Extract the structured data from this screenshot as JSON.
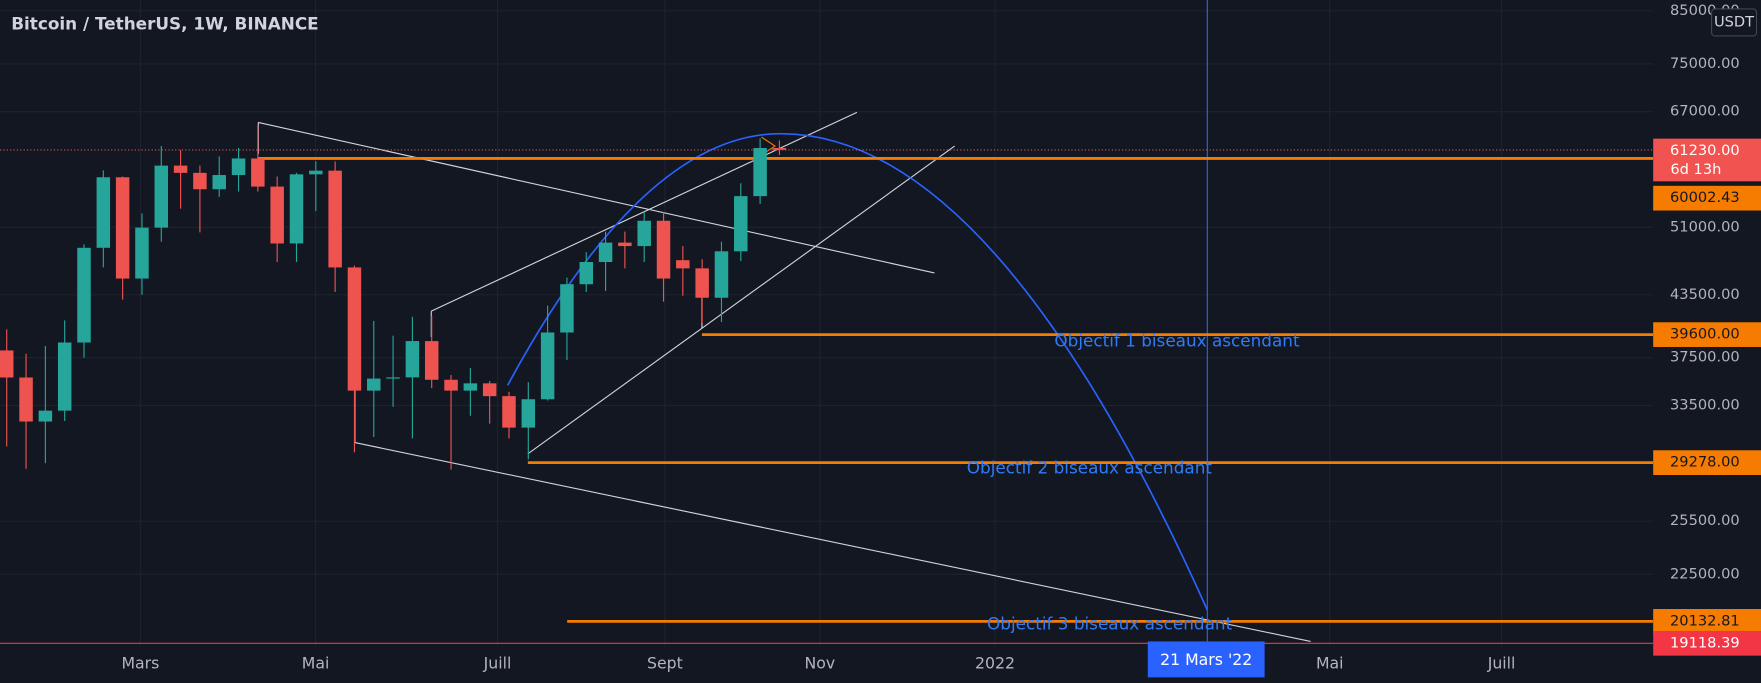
{
  "chart_data": {
    "type": "candlestick",
    "title": "Bitcoin / TetherUS, 1W, BINANCE",
    "currency": "USDT",
    "open": [
      38150,
      35790,
      32260,
      33100,
      38870,
      48600,
      57400,
      45200,
      50970,
      59000,
      58000,
      55800,
      57700,
      60000,
      56150,
      49100,
      57800,
      58300,
      46400,
      34700,
      35700,
      35800,
      39000,
      35600,
      34700,
      35300,
      34250,
      31800,
      34000,
      39800,
      44600,
      47000,
      49200,
      48800,
      51800,
      47200,
      46300,
      43200,
      48200,
      54900,
      61500
    ],
    "high": [
      40100,
      37850,
      38550,
      40950,
      49000,
      58350,
      57500,
      52700,
      61800,
      61200,
      59000,
      60300,
      61500,
      64850,
      57500,
      58000,
      59600,
      59600,
      46600,
      40900,
      39500,
      41300,
      41400,
      36000,
      36600,
      35500,
      34600,
      35400,
      42400,
      45300,
      48100,
      50500,
      50500,
      52900,
      52900,
      48800,
      47300,
      49300,
      56600,
      62900,
      62600
    ],
    "low": [
      30420,
      28850,
      29240,
      32300,
      37500,
      46400,
      43000,
      43500,
      49300,
      53300,
      50400,
      54800,
      55500,
      55500,
      47000,
      47000,
      53000,
      43800,
      30000,
      31100,
      33400,
      31000,
      34900,
      28800,
      32700,
      32100,
      31000,
      29500,
      33900,
      37300,
      43800,
      43900,
      46300,
      47000,
      42800,
      43400,
      40700,
      40800,
      47100,
      53900,
      60500
    ],
    "close": [
      35790,
      32260,
      33100,
      38870,
      48600,
      57400,
      45200,
      50970,
      59000,
      58000,
      55800,
      57700,
      60000,
      56150,
      49100,
      57800,
      58300,
      46400,
      34700,
      35700,
      35800,
      39000,
      35600,
      34700,
      35300,
      34250,
      31800,
      34000,
      39800,
      44600,
      47000,
      49200,
      48800,
      51800,
      45200,
      46300,
      43200,
      48200,
      54900,
      61500,
      61230
    ],
    "up_color": "#26a69a",
    "down_color": "#ef5350",
    "log_scale": true,
    "grid": true,
    "ylim": [
      19000,
      87200
    ],
    "yticks": [
      {
        "value": 85000,
        "label": "85000.00"
      },
      {
        "value": 75000,
        "label": "75000.00"
      },
      {
        "value": 67000,
        "label": "67000.00"
      },
      {
        "value": 51000,
        "label": "51000.00"
      },
      {
        "value": 43500,
        "label": "43500.00"
      },
      {
        "value": 37500,
        "label": "37500.00"
      },
      {
        "value": 33500,
        "label": "33500.00"
      },
      {
        "value": 25500,
        "label": "25500.00"
      },
      {
        "value": 22500,
        "label": "22500.00"
      }
    ],
    "xticks": [
      "Mars",
      "Mai",
      "Juill",
      "Sept",
      "Nov",
      "2022",
      "Mai",
      "Juill"
    ],
    "crosshair_label": "21 Mars '22",
    "last_price": {
      "value": 61230,
      "label": "61230.00",
      "countdown": "6d 13h",
      "color": "#f05350"
    },
    "levels": [
      {
        "value": 60002.43,
        "label": "60002.43",
        "color": "#f57c00"
      },
      {
        "value": 39600,
        "label": "39600.00",
        "color": "#f57c00"
      },
      {
        "value": 29278,
        "label": "29278.00",
        "color": "#f57c00"
      },
      {
        "value": 20132.81,
        "label": "20132.81",
        "color": "#f57c00"
      },
      {
        "value": 19118.39,
        "label": "19118.39",
        "color": "#f23645"
      }
    ],
    "annotations": [
      "Objectif 1 biseaux ascendant",
      "Objectif 2 biseaux ascendant",
      "Objectif 3 biseaux ascendant"
    ]
  }
}
